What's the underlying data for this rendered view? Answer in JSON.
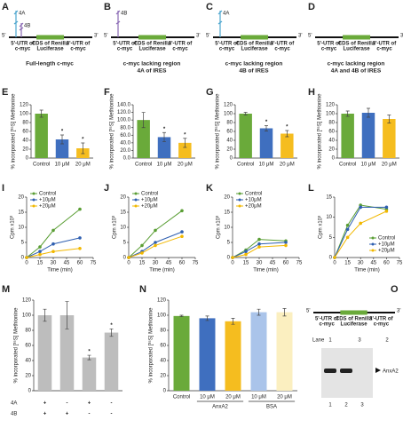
{
  "diagrams": [
    {
      "panel": "A",
      "five": "5'",
      "three": "3'",
      "utr5": [
        "5'-UTR of",
        "c-myc"
      ],
      "cds": [
        "CDS of Renilla",
        "Luciferase"
      ],
      "utr3": [
        "3'-UTR of",
        "c-myc"
      ],
      "caption": [
        "Full-length c-myc"
      ],
      "stems": [
        {
          "label": "4A",
          "color": "#4ea6cf"
        },
        {
          "label": "4B",
          "color": "#8b6bb5"
        }
      ]
    },
    {
      "panel": "B",
      "five": "5'",
      "three": "3'",
      "utr5": [
        "5'-UTR of",
        "c-myc"
      ],
      "cds": [
        "CDS of Renilla",
        "Luciferase"
      ],
      "utr3": [
        "3'-UTR of",
        "c-myc"
      ],
      "caption": [
        "c-myc lacking region",
        "4A of IRES"
      ],
      "stems": [
        {
          "label": "4B",
          "color": "#8b6bb5"
        }
      ]
    },
    {
      "panel": "C",
      "five": "5'",
      "three": "3'",
      "utr5": [
        "5'-UTR of",
        "c-myc"
      ],
      "cds": [
        "CDS of Renilla",
        "Luciferase"
      ],
      "utr3": [
        "3'-UTR of",
        "c-myc"
      ],
      "caption": [
        "c-myc lacking region",
        "4B of IRES"
      ],
      "stems": [
        {
          "label": "4A",
          "color": "#4ea6cf"
        }
      ]
    },
    {
      "panel": "D",
      "five": "5'",
      "three": "3'",
      "utr5": [
        "5'-UTR of",
        "c-myc"
      ],
      "cds": [
        "CDS of Renilla",
        "Luciferase"
      ],
      "utr3": [
        "3'-UTR of",
        "c-myc"
      ],
      "caption": [
        "c-myc lacking region",
        "4A and 4B of IRES"
      ],
      "stems": []
    }
  ],
  "chart_data": [
    {
      "type": "bar",
      "panel": "E",
      "ylabel": "% incorporated [³⁵S] Methionine",
      "categories": [
        "Control",
        "10 μM",
        "20 μM"
      ],
      "values": [
        100,
        42,
        22
      ],
      "errors": [
        8,
        10,
        12
      ],
      "stars": [
        null,
        "*",
        "*"
      ],
      "colors": [
        "#6aaa3a",
        "#3f6fbf",
        "#f5bd1f"
      ],
      "ylim": [
        0,
        120
      ],
      "yticks": [
        0,
        20,
        40,
        60,
        80,
        100,
        120
      ]
    },
    {
      "type": "bar",
      "panel": "F",
      "ylabel": "% incorporated [³⁵S] Methionine",
      "categories": [
        "Control",
        "10 μM",
        "20 μM"
      ],
      "values": [
        100,
        55,
        40
      ],
      "errors": [
        20,
        12,
        12
      ],
      "stars": [
        null,
        "*",
        "*"
      ],
      "colors": [
        "#6aaa3a",
        "#3f6fbf",
        "#f5bd1f"
      ],
      "ylim": [
        0,
        140
      ],
      "yticks": [
        {
          "value": 0,
          "label": "0.0"
        },
        {
          "value": 20,
          "label": "20.0"
        },
        {
          "value": 40,
          "label": "40.0"
        },
        {
          "value": 60,
          "label": "60.0"
        },
        {
          "value": 80,
          "label": "80.0"
        },
        {
          "value": 100,
          "label": "100.0"
        },
        {
          "value": 120,
          "label": "120.0"
        },
        {
          "value": 140,
          "label": "140.0"
        }
      ]
    },
    {
      "type": "bar",
      "panel": "G",
      "ylabel": "% incorporated [³⁵S] Methionine",
      "categories": [
        "Control",
        "10 μM",
        "20 μM"
      ],
      "values": [
        100,
        67,
        55
      ],
      "errors": [
        3,
        6,
        7
      ],
      "stars": [
        null,
        "*",
        "*"
      ],
      "colors": [
        "#6aaa3a",
        "#3f6fbf",
        "#f5bd1f"
      ],
      "ylim": [
        0,
        120
      ],
      "yticks": [
        0,
        20,
        40,
        60,
        80,
        100,
        120
      ]
    },
    {
      "type": "bar",
      "panel": "H",
      "ylabel": "% incorporated [³⁵S] Methionine",
      "categories": [
        "Control",
        "10 μM",
        "20 μM"
      ],
      "values": [
        100,
        102,
        88
      ],
      "errors": [
        6,
        10,
        9
      ],
      "colors": [
        "#6aaa3a",
        "#3f6fbf",
        "#f5bd1f"
      ],
      "ylim": [
        0,
        120
      ],
      "yticks": [
        0,
        20,
        40,
        60,
        80,
        100,
        120
      ]
    },
    {
      "type": "line",
      "panel": "I",
      "xlabel": "Time (min)",
      "ylabel": "Cpm x10³",
      "x": [
        0,
        15,
        30,
        60
      ],
      "xlim": [
        0,
        75
      ],
      "xticks": [
        0,
        15,
        30,
        45,
        60,
        75
      ],
      "ylim": [
        0,
        20
      ],
      "yticks": [
        0,
        5,
        10,
        15,
        20
      ],
      "legend": "top-left",
      "series": [
        {
          "name": "Control",
          "color": "#5a9e34",
          "values": [
            0,
            3.5,
            9,
            16
          ]
        },
        {
          "name": "+10μM",
          "color": "#2f5fb0",
          "values": [
            0,
            2,
            4.5,
            6.5
          ]
        },
        {
          "name": "+20μM",
          "color": "#f2b800",
          "values": [
            0,
            1,
            2,
            3
          ]
        }
      ]
    },
    {
      "type": "line",
      "panel": "J",
      "xlabel": "Time (min)",
      "ylabel": "Cpm x10³",
      "x": [
        0,
        15,
        30,
        60
      ],
      "xlim": [
        0,
        75
      ],
      "xticks": [
        0,
        15,
        30,
        45,
        60,
        75
      ],
      "ylim": [
        0,
        20
      ],
      "yticks": [
        0,
        5,
        10,
        15,
        20
      ],
      "legend": "top-left",
      "series": [
        {
          "name": "Control",
          "color": "#5a9e34",
          "values": [
            0,
            4,
            9,
            15.5
          ]
        },
        {
          "name": "+10μM",
          "color": "#2f5fb0",
          "values": [
            0,
            2,
            5,
            8.5
          ]
        },
        {
          "name": "+20μM",
          "color": "#f2b800",
          "values": [
            0,
            1.5,
            4,
            7
          ]
        }
      ]
    },
    {
      "type": "line",
      "panel": "K",
      "xlabel": "Time (min)",
      "ylabel": "Cpm x10³",
      "x": [
        0,
        15,
        30,
        60
      ],
      "xlim": [
        0,
        75
      ],
      "xticks": [
        0,
        15,
        30,
        45,
        60,
        75
      ],
      "ylim": [
        0,
        20
      ],
      "yticks": [
        0,
        5,
        10,
        15,
        20
      ],
      "legend": "top-left",
      "series": [
        {
          "name": "Control",
          "color": "#5a9e34",
          "values": [
            0,
            2.5,
            6,
            5.5
          ]
        },
        {
          "name": "+10μM",
          "color": "#2f5fb0",
          "values": [
            0,
            2,
            4.5,
            5
          ]
        },
        {
          "name": "+20μM",
          "color": "#f2b800",
          "values": [
            0,
            1,
            3.5,
            4
          ]
        }
      ]
    },
    {
      "type": "line",
      "panel": "L",
      "xlabel": "Time (min)",
      "ylabel": "Cpm x10³",
      "x": [
        0,
        15,
        30,
        60
      ],
      "xlim": [
        0,
        75
      ],
      "xticks": [
        0,
        15,
        30,
        45,
        60,
        75
      ],
      "ylim": [
        0,
        15
      ],
      "yticks": [
        0,
        5,
        10,
        15
      ],
      "legend": "bottom-right",
      "series": [
        {
          "name": "Control",
          "color": "#5a9e34",
          "values": [
            0,
            8,
            13,
            12
          ]
        },
        {
          "name": "+10μM",
          "color": "#2f5fb0",
          "values": [
            0,
            7,
            12.5,
            12.5
          ]
        },
        {
          "name": "+20μM",
          "color": "#f2b800",
          "values": [
            0,
            5,
            8.5,
            11.5
          ]
        }
      ]
    },
    {
      "type": "bar",
      "panel": "M",
      "ylabel": "% incorporated [³⁵S] Methionine",
      "values": [
        100,
        100,
        44,
        77
      ],
      "errors": [
        8,
        18,
        3,
        5
      ],
      "stars": [
        null,
        null,
        "*",
        "*"
      ],
      "color": "#bdbdbd",
      "ylim": [
        0,
        120
      ],
      "yticks": [
        0,
        20,
        40,
        60,
        80,
        100,
        120
      ],
      "rows": [
        {
          "name": "4A",
          "signs": [
            "+",
            "-",
            "+",
            "-"
          ]
        },
        {
          "name": "4B",
          "signs": [
            "+",
            "+",
            "-",
            "-"
          ]
        }
      ]
    },
    {
      "type": "bar",
      "panel": "N",
      "ylabel": "% incorporated [³⁵S] Methionine",
      "categories": [
        "Control",
        "10 μM",
        "20 μM",
        "10 μM",
        "20 μM"
      ],
      "values": [
        99,
        96,
        92,
        104,
        104
      ],
      "errors": [
        1,
        3,
        4,
        4,
        5
      ],
      "colors": [
        "#6aaa3a",
        "#3f6fbf",
        "#f5bd1f",
        "#aac4ea",
        "#fbefc0"
      ],
      "ylim": [
        0,
        120
      ],
      "yticks": [
        0,
        20,
        40,
        60,
        80,
        100,
        120
      ],
      "groups": [
        {
          "name": "AnxA2",
          "span": [
            1,
            2
          ]
        },
        {
          "name": "BSA",
          "span": [
            3,
            4
          ]
        }
      ]
    }
  ],
  "gel": {
    "panel": "O",
    "five": "5'",
    "three": "3'",
    "utr5": [
      "5'-UTR of",
      "c-myc"
    ],
    "cds": [
      "CDS of Renilla",
      "Luciferase"
    ],
    "utr3": [
      "3'-UTR of",
      "c-myc"
    ],
    "lane_title": "Lane",
    "lane_order": [
      "1",
      "3",
      "2"
    ],
    "lanes": [
      "1",
      "2",
      "3"
    ],
    "band": "AnxA2"
  }
}
